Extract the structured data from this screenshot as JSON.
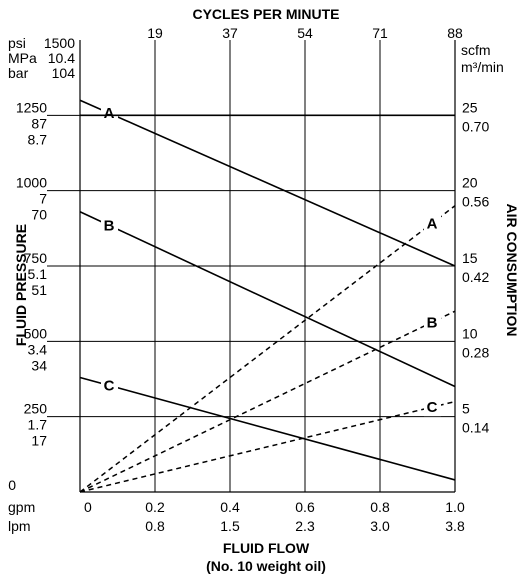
{
  "chart_data": {
    "type": "line",
    "title": "",
    "top_axis": {
      "label": "CYCLES PER MINUTE",
      "ticks": [
        "19",
        "37",
        "54",
        "71",
        "88"
      ]
    },
    "x_axis": {
      "label": "FLUID FLOW",
      "sublabel": "(No. 10 weight oil)",
      "unit_gpm": "gpm",
      "unit_lpm": "lpm",
      "gpm_ticks": [
        "0",
        "0.2",
        "0.4",
        "0.6",
        "0.8",
        "1.0"
      ],
      "lpm_ticks": [
        "",
        "0.8",
        "1.5",
        "2.3",
        "3.0",
        "3.8"
      ],
      "range": [
        0,
        1.0
      ]
    },
    "left_axis": {
      "label": "FLUID PRESSURE",
      "units": [
        "psi",
        "MPa",
        "bar"
      ],
      "range_psi": [
        0,
        1500
      ],
      "ticks": [
        {
          "psi": 1500,
          "lines": [
            "1500",
            "10.4",
            "104"
          ]
        },
        {
          "psi": 1250,
          "lines": [
            "1250",
            "87",
            "8.7"
          ]
        },
        {
          "psi": 1000,
          "lines": [
            "1000",
            "7",
            "70"
          ]
        },
        {
          "psi": 750,
          "lines": [
            "750",
            "5.1",
            "51"
          ]
        },
        {
          "psi": 500,
          "lines": [
            "500",
            "3.4",
            "34"
          ]
        },
        {
          "psi": 250,
          "lines": [
            "250",
            "1.7",
            "17"
          ]
        },
        {
          "psi": 0,
          "lines": [
            "0"
          ]
        }
      ]
    },
    "right_axis": {
      "label": "AIR CONSUMPTION",
      "units": [
        "scfm",
        "m³/min"
      ],
      "range_scfm": [
        0,
        30
      ],
      "ticks": [
        {
          "scfm": 25,
          "lines": [
            "25",
            "0.70"
          ]
        },
        {
          "scfm": 20,
          "lines": [
            "20",
            "0.56"
          ]
        },
        {
          "scfm": 15,
          "lines": [
            "15",
            "0.42"
          ]
        },
        {
          "scfm": 10,
          "lines": [
            "10",
            "0.28"
          ]
        },
        {
          "scfm": 5,
          "lines": [
            "5",
            "0.14"
          ]
        }
      ]
    },
    "grid": true,
    "pressure_series": [
      {
        "name": "A",
        "x": [
          0,
          1.0
        ],
        "psi": [
          1300,
          750
        ]
      },
      {
        "name": "B",
        "x": [
          0,
          1.0
        ],
        "psi": [
          930,
          350
        ]
      },
      {
        "name": "C",
        "x": [
          0,
          1.0
        ],
        "psi": [
          380,
          40
        ]
      }
    ],
    "air_series": [
      {
        "name": "A",
        "x": [
          0,
          1.0
        ],
        "scfm": [
          0,
          19
        ]
      },
      {
        "name": "B",
        "x": [
          0,
          1.0
        ],
        "scfm": [
          0,
          12
        ]
      },
      {
        "name": "C",
        "x": [
          0,
          1.0
        ],
        "scfm": [
          0,
          6
        ]
      }
    ]
  }
}
